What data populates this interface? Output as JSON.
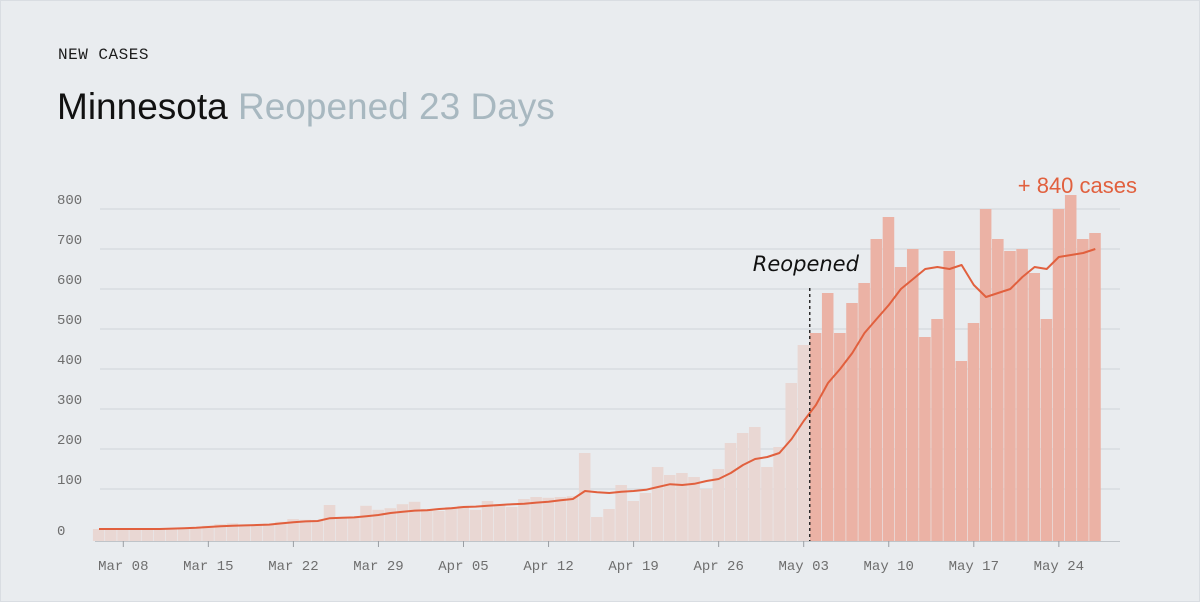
{
  "header": {
    "eyebrow": "NEW CASES",
    "state": "Minnesota",
    "subtitle": "Reopened 23 Days"
  },
  "annotations": {
    "event_label": "Reopened",
    "total_label": "+ 840 cases"
  },
  "colors": {
    "background": "#e9ecef",
    "bar_past": "#e9d7d3",
    "bar_since": "#ebb2a5",
    "line": "#e1603e",
    "grid": "#cfd4d9",
    "subtitle": "#a8b8c0"
  },
  "chart_data": {
    "type": "bar",
    "title": "Minnesota Reopened 23 Days",
    "xlabel": "",
    "ylabel": "",
    "ylim": [
      0,
      800
    ],
    "yticks": [
      0,
      100,
      200,
      300,
      400,
      500,
      600,
      700,
      800
    ],
    "grid": true,
    "x_ticks": [
      "Mar 08",
      "Mar 15",
      "Mar 22",
      "Mar 29",
      "Apr 05",
      "Apr 12",
      "Apr 19",
      "Apr 26",
      "May 03",
      "May 10",
      "May 17",
      "May 24"
    ],
    "event": {
      "label": "Reopened",
      "date": "May 04"
    },
    "dates": [
      "Mar 06",
      "Mar 07",
      "Mar 08",
      "Mar 09",
      "Mar 10",
      "Mar 11",
      "Mar 12",
      "Mar 13",
      "Mar 14",
      "Mar 15",
      "Mar 16",
      "Mar 17",
      "Mar 18",
      "Mar 19",
      "Mar 20",
      "Mar 21",
      "Mar 22",
      "Mar 23",
      "Mar 24",
      "Mar 25",
      "Mar 26",
      "Mar 27",
      "Mar 28",
      "Mar 29",
      "Mar 30",
      "Mar 31",
      "Apr 01",
      "Apr 02",
      "Apr 03",
      "Apr 04",
      "Apr 05",
      "Apr 06",
      "Apr 07",
      "Apr 08",
      "Apr 09",
      "Apr 10",
      "Apr 11",
      "Apr 12",
      "Apr 13",
      "Apr 14",
      "Apr 15",
      "Apr 16",
      "Apr 17",
      "Apr 18",
      "Apr 19",
      "Apr 20",
      "Apr 21",
      "Apr 22",
      "Apr 23",
      "Apr 24",
      "Apr 25",
      "Apr 26",
      "Apr 27",
      "Apr 28",
      "Apr 29",
      "Apr 30",
      "May 01",
      "May 02",
      "May 03",
      "May 04",
      "May 05",
      "May 06",
      "May 07",
      "May 08",
      "May 09",
      "May 10",
      "May 11",
      "May 12",
      "May 13",
      "May 14",
      "May 15",
      "May 16",
      "May 17",
      "May 18",
      "May 19",
      "May 20",
      "May 21",
      "May 22",
      "May 23",
      "May 24",
      "May 25",
      "May 26",
      "May 27"
    ],
    "series": [
      {
        "name": "New cases",
        "values": [
          0,
          0,
          0,
          0,
          0,
          1,
          2,
          3,
          4,
          8,
          12,
          14,
          10,
          11,
          13,
          18,
          25,
          23,
          20,
          60,
          30,
          28,
          58,
          48,
          52,
          62,
          68,
          50,
          45,
          55,
          58,
          48,
          70,
          62,
          55,
          75,
          80,
          78,
          80,
          82,
          190,
          30,
          50,
          110,
          70,
          90,
          155,
          135,
          140,
          130,
          100,
          150,
          215,
          240,
          255,
          155,
          205,
          365,
          460,
          490,
          590,
          490,
          565,
          615,
          725,
          780,
          655,
          700,
          480,
          525,
          695,
          420,
          515,
          800,
          725,
          695,
          700,
          640,
          525,
          800,
          835,
          725,
          740
        ]
      },
      {
        "name": "7-day average",
        "values": [
          0,
          0,
          0,
          0,
          0,
          0,
          1,
          2,
          3,
          5,
          7,
          8,
          9,
          10,
          11,
          14,
          17,
          19,
          20,
          27,
          28,
          29,
          32,
          35,
          40,
          43,
          46,
          47,
          50,
          52,
          55,
          56,
          58,
          60,
          62,
          63,
          66,
          68,
          72,
          75,
          95,
          92,
          90,
          93,
          95,
          98,
          105,
          112,
          110,
          113,
          120,
          125,
          140,
          160,
          175,
          180,
          190,
          225,
          270,
          310,
          365,
          400,
          440,
          490,
          525,
          560,
          600,
          625,
          650,
          655,
          650,
          660,
          610,
          580,
          590,
          600,
          630,
          655,
          650,
          680,
          685,
          690,
          700
        ]
      }
    ]
  }
}
